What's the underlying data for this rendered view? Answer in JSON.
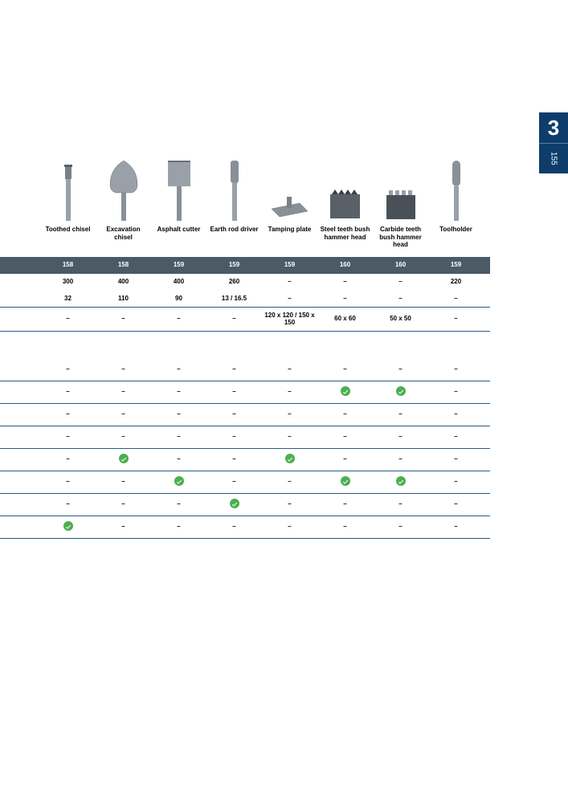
{
  "tab": {
    "chapter": "3",
    "page": "155"
  },
  "columns": [
    {
      "label": "Toothed chisel"
    },
    {
      "label": "Excavation chisel"
    },
    {
      "label": "Asphalt cutter"
    },
    {
      "label": "Earth rod driver"
    },
    {
      "label": "Tamping plate"
    },
    {
      "label": "Steel teeth bush hammer head"
    },
    {
      "label": "Carbide teeth bush hammer head"
    },
    {
      "label": "Toolholder"
    }
  ],
  "header_row": [
    "158",
    "158",
    "159",
    "159",
    "159",
    "160",
    "160",
    "159"
  ],
  "spec_rows": [
    [
      "300",
      "400",
      "400",
      "260",
      "–",
      "–",
      "–",
      "220"
    ],
    [
      "32",
      "110",
      "90",
      "13 / 16.5",
      "–",
      "–",
      "–",
      "–"
    ],
    [
      "–",
      "–",
      "–",
      "–",
      "120 x 120 / 150 x 150",
      "60 x 60",
      "50 x 50",
      "–"
    ]
  ],
  "check_rows": [
    [
      "–",
      "–",
      "–",
      "–",
      "–",
      "–",
      "–",
      "–"
    ],
    [
      "–",
      "–",
      "–",
      "–",
      "–",
      "check",
      "check",
      "–"
    ],
    [
      "–",
      "–",
      "–",
      "–",
      "–",
      "–",
      "–",
      "–"
    ],
    [
      "–",
      "–",
      "–",
      "–",
      "–",
      "–",
      "–",
      "–"
    ],
    [
      "–",
      "check",
      "–",
      "–",
      "check",
      "–",
      "–",
      "–"
    ],
    [
      "–",
      "–",
      "check",
      "–",
      "–",
      "check",
      "check",
      "–"
    ],
    [
      "–",
      "–",
      "–",
      "check",
      "–",
      "–",
      "–",
      "–"
    ],
    [
      "check",
      "–",
      "–",
      "–",
      "–",
      "–",
      "–",
      "–"
    ]
  ],
  "colors": {
    "tab_bg": "#0f3d6b",
    "row_border": "#2b5b85",
    "dark_header_bg": "#4a5a66",
    "check_bg": "#4caf50"
  }
}
